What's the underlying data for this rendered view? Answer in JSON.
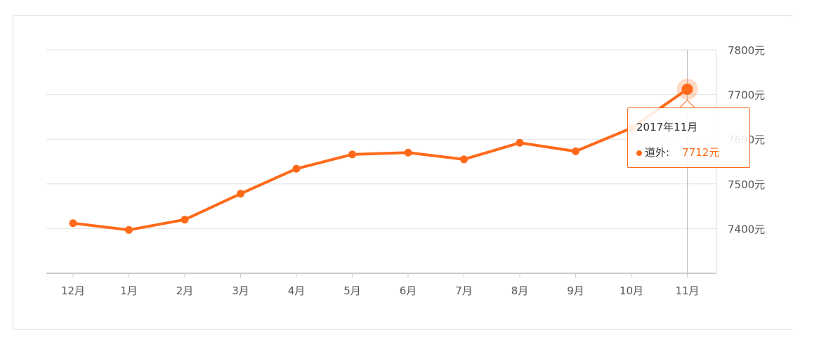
{
  "chart_data": {
    "type": "line",
    "categories": [
      "12月",
      "1月",
      "2月",
      "3月",
      "4月",
      "5月",
      "6月",
      "7月",
      "8月",
      "9月",
      "10月",
      "11月"
    ],
    "series": [
      {
        "name": "道外",
        "values": [
          7412,
          7397,
          7420,
          7478,
          7534,
          7566,
          7570,
          7555,
          7592,
          7573,
          7625,
          7712
        ],
        "color": "#ff6a1a"
      }
    ],
    "y_ticks": [
      7400,
      7500,
      7600,
      7700,
      7800
    ],
    "y_tick_suffix": "元",
    "ylim": [
      7300,
      7800
    ],
    "y_axis_position": "right",
    "grid": true,
    "tooltip": {
      "title": "2017年11月",
      "series_label": "道外:",
      "value_label": "7712元",
      "active_index": 11
    }
  }
}
